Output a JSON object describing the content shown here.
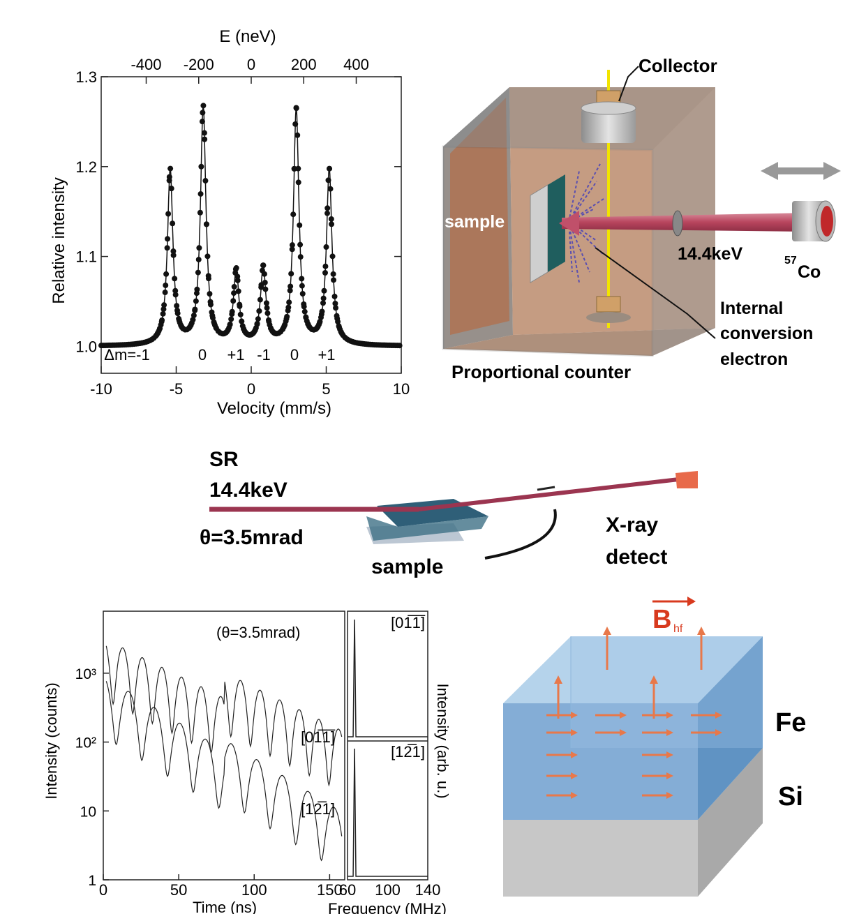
{
  "chart_data": [
    {
      "type": "line",
      "title": "",
      "xlabel": "Velocity (mm/s)",
      "ylabel": "Relative intensity",
      "top_axis_label": "E (neV)",
      "xlim": [
        -10,
        10
      ],
      "ylim": [
        0.97,
        1.3
      ],
      "x_ticks": [
        -10,
        -5,
        0,
        5,
        10
      ],
      "x_tick_labels": [
        "-10",
        "-5",
        "0",
        "5",
        "10"
      ],
      "y_ticks": [
        1.0,
        1.1,
        1.2,
        1.3
      ],
      "y_tick_labels": [
        "1.0",
        "1.1",
        "1.2",
        "1.3"
      ],
      "top_ticks_velocity": [
        -7.0,
        -3.5,
        0,
        3.5,
        7.0
      ],
      "top_tick_labels": [
        "-400",
        "-200",
        "0",
        "200",
        "400"
      ],
      "baseline": 1.0,
      "peaks": [
        {
          "x": -5.4,
          "y": 1.195
        },
        {
          "x": -3.2,
          "y": 1.265
        },
        {
          "x": -1.0,
          "y": 1.082
        },
        {
          "x": 0.8,
          "y": 1.085
        },
        {
          "x": 3.0,
          "y": 1.262
        },
        {
          "x": 5.2,
          "y": 1.195
        }
      ],
      "peak_width": 0.22,
      "transition_labels": [
        "Δm=-1",
        "0",
        "+1",
        "-1",
        "0",
        "+1"
      ]
    },
    {
      "type": "line",
      "title": "",
      "xlabel": "Time (ns)",
      "ylabel": "Intensity (counts)",
      "annotation": "(θ=3.5mrad)",
      "xlim": [
        0,
        160
      ],
      "x_ticks": [
        0,
        50,
        100,
        150
      ],
      "x_tick_labels": [
        "0",
        "50",
        "100",
        "150"
      ],
      "y_scale": "log",
      "y_tick_labels": [
        "1",
        "10",
        "10²",
        "10³"
      ],
      "series": [
        {
          "name": "[01̅1̅]",
          "envelope_start": 2800,
          "decay_ns": 40,
          "beat_period_ns": 13
        },
        {
          "name": "[12̅1]",
          "envelope_start": 800,
          "decay_ns": 32,
          "beat_period_ns": 17
        }
      ]
    },
    {
      "type": "line",
      "title": "",
      "xlabel": "Frequency (MHz)",
      "ylabel": "Intensity (arb. u.)",
      "xlim": [
        60,
        140
      ],
      "x_ticks": [
        60,
        100,
        140
      ],
      "x_tick_labels": [
        "60",
        "100",
        "140"
      ],
      "series": [
        {
          "name": "[01̅1̅]",
          "peak_x": 67,
          "peak_y": 1.0
        },
        {
          "name": "[12̅1]",
          "peak_x": 67,
          "peak_y": 1.0
        }
      ]
    }
  ],
  "cems_diagram": {
    "collector": "Collector",
    "sample": "sample",
    "energy": "14.4keV",
    "source_mass": "57",
    "source_element": "Co",
    "electron_label_1": "Internal",
    "electron_label_2": "conversion",
    "electron_label_3": "electron",
    "counter": "Proportional counter"
  },
  "sr_diagram": {
    "sr": "SR",
    "energy": "14.4keV",
    "angle": "θ=3.5mrad",
    "sample": "sample",
    "detect_1": "X-ray",
    "detect_2": "detect"
  },
  "film_diagram": {
    "field": "B",
    "field_sub": "hf",
    "top_layer": "Fe",
    "substrate": "Si"
  },
  "colors": {
    "beam": "#c0506a",
    "counter_wall": "#c99a7d",
    "fe_layer": "#7fb2de",
    "si_layer": "#c8c8c8",
    "arrow": "#e8784a",
    "field_red": "#d83a1e"
  }
}
